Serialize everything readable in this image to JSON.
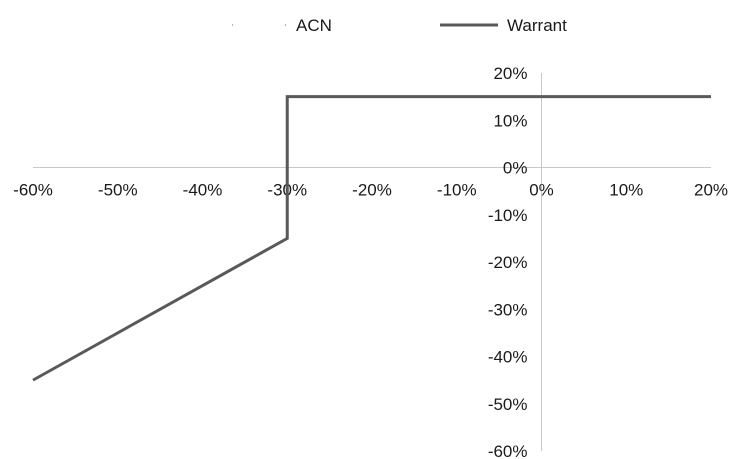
{
  "chart_data": {
    "type": "line",
    "xlim": [
      -0.6,
      0.2
    ],
    "ylim": [
      -0.6,
      0.2
    ],
    "x_ticks": [
      "-60%",
      "-50%",
      "-40%",
      "-30%",
      "-20%",
      "-10%",
      "0%",
      "10%",
      "20%"
    ],
    "y_ticks": [
      "20%",
      "10%",
      "0%",
      "-10%",
      "-20%",
      "-30%",
      "-40%",
      "-50%",
      "-60%"
    ],
    "tick_values": [
      -0.6,
      -0.5,
      -0.4,
      -0.3,
      -0.2,
      -0.1,
      0,
      0.1,
      0.2
    ],
    "grid": false,
    "legend_position": "top",
    "series": [
      {
        "name": "ACN",
        "color": "#e8a0a8",
        "style": "dotted",
        "points": []
      },
      {
        "name": "Warrant",
        "color": "#595959",
        "style": "solid",
        "points": [
          {
            "x": -0.6,
            "y": -0.45
          },
          {
            "x": -0.3,
            "y": -0.15
          },
          {
            "x": -0.3,
            "y": 0.15
          },
          {
            "x": 0.2,
            "y": 0.15
          }
        ]
      }
    ]
  }
}
